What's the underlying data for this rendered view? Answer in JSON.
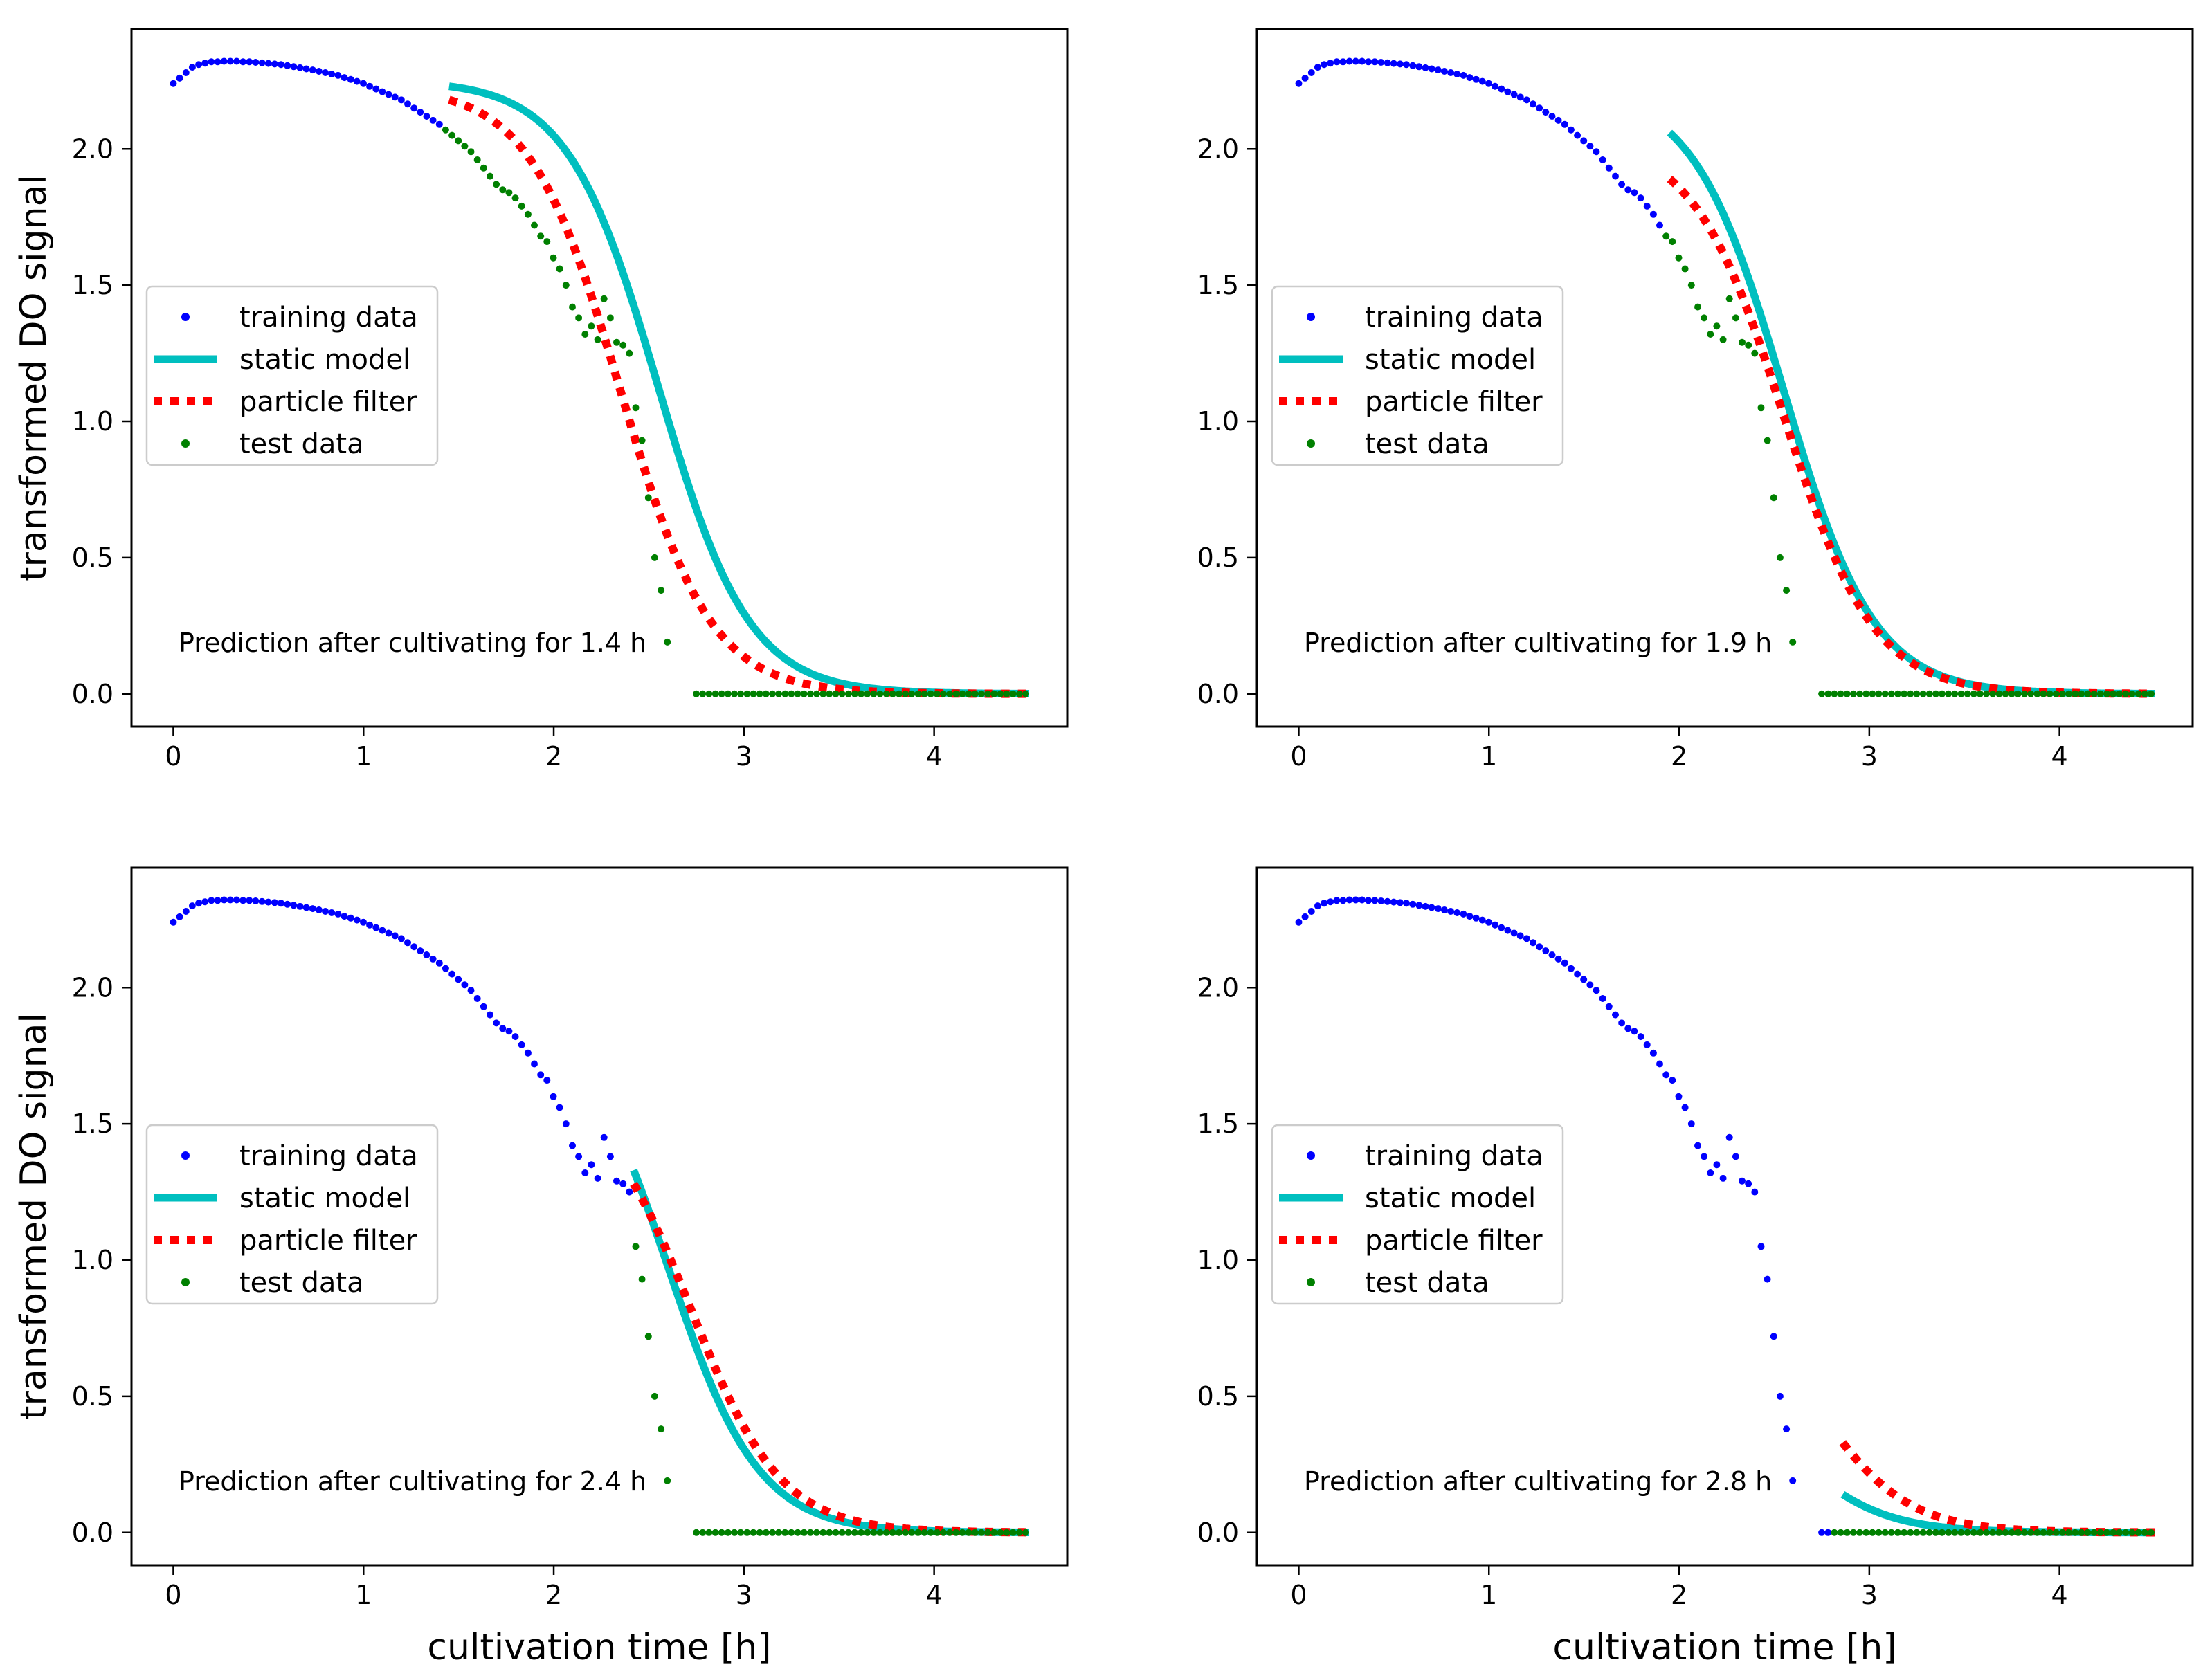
{
  "figure": {
    "ylabel": "transformed DO signal",
    "xlabel": "cultivation time [h]",
    "legend": {
      "position": "center-left",
      "entries": [
        "training data",
        "static model",
        "particle filter",
        "test data"
      ]
    },
    "colors": {
      "training": "#0000ff",
      "static": "#00bfbf",
      "particle": "#ff0000",
      "test": "#008000",
      "axis": "#000000"
    }
  },
  "chart_data": [
    {
      "type": "line",
      "annotation": "Prediction after cultivating for 1.4 h",
      "cutoff_h": 1.4,
      "xlim": [
        -0.22,
        4.7
      ],
      "ylim": [
        -0.12,
        2.44
      ],
      "xticks": [
        "0",
        "1",
        "2",
        "3",
        "4"
      ],
      "yticks": [
        "0.0",
        "0.5",
        "1.0",
        "1.5",
        "2.0"
      ],
      "xlabel": "",
      "ylabel": "transformed DO signal",
      "series": [
        {
          "name": "training data",
          "marker": "dot"
        },
        {
          "name": "static model",
          "style": "solid",
          "start": [
            1.45,
            2.23
          ],
          "midpoint": 2.55,
          "end": 4.5
        },
        {
          "name": "particle filter",
          "style": "dotted",
          "start": [
            1.45,
            2.18
          ],
          "midpoint": 2.35,
          "end": 4.5
        },
        {
          "name": "test data",
          "marker": "dot"
        }
      ]
    },
    {
      "type": "line",
      "annotation": "Prediction after cultivating for 1.9 h",
      "cutoff_h": 1.9,
      "xlim": [
        -0.22,
        4.7
      ],
      "ylim": [
        -0.12,
        2.44
      ],
      "xticks": [
        "0",
        "1",
        "2",
        "3",
        "4"
      ],
      "yticks": [
        "0.0",
        "0.5",
        "1.0",
        "1.5",
        "2.0"
      ],
      "xlabel": "",
      "ylabel": "",
      "series": [
        {
          "name": "training data",
          "marker": "dot"
        },
        {
          "name": "static model",
          "style": "solid",
          "start": [
            1.95,
            2.06
          ],
          "midpoint": 2.55,
          "end": 4.5
        },
        {
          "name": "particle filter",
          "style": "dotted",
          "start": [
            1.95,
            1.89
          ],
          "midpoint": 2.55,
          "end": 4.5
        },
        {
          "name": "test data",
          "marker": "dot"
        }
      ]
    },
    {
      "type": "line",
      "annotation": "Prediction after cultivating for 2.4 h",
      "cutoff_h": 2.4,
      "xlim": [
        -0.22,
        4.7
      ],
      "ylim": [
        -0.12,
        2.44
      ],
      "xticks": [
        "0",
        "1",
        "2",
        "3",
        "4"
      ],
      "yticks": [
        "0.0",
        "0.5",
        "1.0",
        "1.5",
        "2.0"
      ],
      "xlabel": "cultivation time [h]",
      "ylabel": "transformed DO signal",
      "series": [
        {
          "name": "training data",
          "marker": "dot"
        },
        {
          "name": "static model",
          "style": "solid",
          "start": [
            2.42,
            1.33
          ],
          "midpoint": 2.6,
          "end": 4.5
        },
        {
          "name": "particle filter",
          "style": "dotted",
          "start": [
            2.42,
            1.28
          ],
          "midpoint": 2.72,
          "end": 4.5
        },
        {
          "name": "test data",
          "marker": "dot"
        }
      ]
    },
    {
      "type": "line",
      "annotation": "Prediction after cultivating for 2.8 h",
      "cutoff_h": 2.8,
      "xlim": [
        -0.22,
        4.7
      ],
      "ylim": [
        -0.12,
        2.44
      ],
      "xticks": [
        "0",
        "1",
        "2",
        "3",
        "4"
      ],
      "yticks": [
        "0.0",
        "0.5",
        "1.0",
        "1.5",
        "2.0"
      ],
      "xlabel": "cultivation time [h]",
      "ylabel": "",
      "series": [
        {
          "name": "training data",
          "marker": "dot"
        },
        {
          "name": "static model",
          "style": "solid",
          "start": [
            2.86,
            0.14
          ],
          "midpoint": 2.6,
          "end": 4.5
        },
        {
          "name": "particle filter",
          "style": "dotted",
          "start": [
            2.86,
            0.33
          ],
          "midpoint": 2.72,
          "end": 4.5
        },
        {
          "name": "test data",
          "marker": "dot"
        }
      ]
    }
  ],
  "observed_do_signal": {
    "step_h": 0.0333,
    "start_h": 0,
    "values": [
      2.24,
      2.26,
      2.28,
      2.3,
      2.31,
      2.315,
      2.32,
      2.32,
      2.322,
      2.322,
      2.322,
      2.32,
      2.32,
      2.318,
      2.316,
      2.314,
      2.312,
      2.31,
      2.306,
      2.302,
      2.298,
      2.294,
      2.29,
      2.285,
      2.28,
      2.275,
      2.27,
      2.262,
      2.255,
      2.248,
      2.24,
      2.23,
      2.22,
      2.21,
      2.2,
      2.19,
      2.18,
      2.165,
      2.15,
      2.135,
      2.12,
      2.105,
      2.09,
      2.07,
      2.05,
      2.03,
      2.01,
      1.99,
      1.96,
      1.93,
      1.9,
      1.87,
      1.85,
      1.84,
      1.82,
      1.79,
      1.76,
      1.72,
      1.68,
      1.66,
      1.6,
      1.56,
      1.5,
      1.42,
      1.38,
      1.32,
      1.35,
      1.3,
      1.45,
      1.38,
      1.29,
      1.28,
      1.25,
      1.05,
      0.93,
      0.72,
      0.5,
      0.38,
      0.19
    ],
    "after_h": 2.75,
    "end_h": 4.5,
    "tail_value": 0.0
  }
}
